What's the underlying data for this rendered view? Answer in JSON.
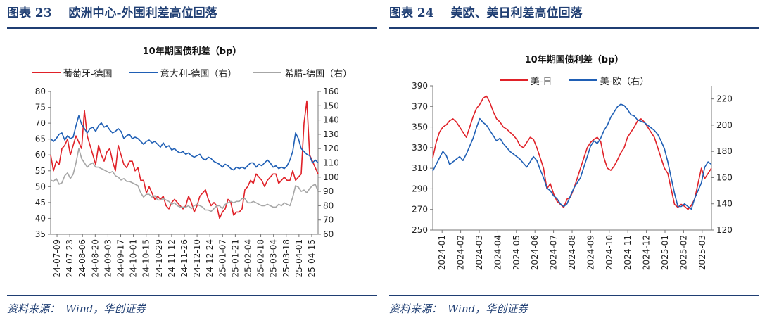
{
  "left": {
    "header": {
      "label": "图表",
      "number": "23",
      "title": "欧洲中心-外围利差高位回落"
    },
    "source": {
      "label": "资料来源：",
      "value": "Wind，华创证券"
    },
    "chart_data": {
      "type": "line",
      "title": "10年期国债利差（bp）",
      "legend_position": "top",
      "grid": false,
      "x_ticks": [
        "24-07-09",
        "24-07-23",
        "24-08-06",
        "24-08-20",
        "24-09-03",
        "24-09-17",
        "24-10-01",
        "24-10-15",
        "24-10-29",
        "24-11-12",
        "24-11-26",
        "24-12-10",
        "24-12-24",
        "25-01-07",
        "25-01-21",
        "25-02-04",
        "25-02-18",
        "25-03-04",
        "25-03-18",
        "25-04-01",
        "25-04-15"
      ],
      "y_left": {
        "range": [
          35,
          80
        ],
        "ticks": [
          35,
          40,
          45,
          50,
          55,
          60,
          65,
          70,
          75,
          80
        ]
      },
      "y_right": {
        "range": [
          60,
          160
        ],
        "ticks": [
          60,
          70,
          80,
          90,
          100,
          110,
          120,
          130,
          140,
          150,
          160
        ]
      },
      "series": [
        {
          "name": "葡萄牙-德国",
          "axis": "left",
          "color": "#e02128",
          "values": [
            60,
            55,
            58,
            57,
            62,
            63,
            65,
            60,
            63,
            66,
            64,
            62,
            74,
            66,
            63,
            60,
            57,
            63,
            60,
            58,
            61,
            62,
            58,
            55,
            63,
            60,
            57,
            56,
            58,
            58,
            55,
            56,
            52,
            52,
            48,
            50,
            48,
            46,
            47,
            46,
            47,
            44,
            43,
            45,
            46,
            45,
            44,
            43,
            44,
            47,
            45,
            42,
            44,
            47,
            48,
            49,
            46,
            44,
            45,
            44,
            40,
            42,
            43,
            46,
            45,
            41,
            42,
            42,
            43,
            49,
            50,
            52,
            51,
            54,
            53,
            52,
            50,
            52,
            53,
            54,
            54,
            51,
            52,
            53,
            52,
            52,
            55,
            52,
            53,
            54,
            70,
            77,
            60,
            58,
            56,
            54
          ]
        },
        {
          "name": "意大利-德国（右）",
          "axis": "right",
          "color": "#1f5fb5",
          "values": [
            127,
            125,
            127,
            130,
            131,
            126,
            129,
            127,
            128,
            136,
            143,
            137,
            134,
            131,
            134,
            135,
            132,
            136,
            138,
            135,
            136,
            133,
            131,
            132,
            134,
            132,
            127,
            129,
            130,
            127,
            128,
            127,
            125,
            123,
            125,
            126,
            124,
            125,
            123,
            121,
            124,
            121,
            122,
            119,
            120,
            118,
            117,
            118,
            116,
            117,
            115,
            114,
            115,
            116,
            113,
            112,
            114,
            113,
            111,
            110,
            109,
            107,
            109,
            108,
            106,
            105,
            107,
            106,
            107,
            106,
            108,
            110,
            110,
            107,
            109,
            108,
            110,
            112,
            110,
            107,
            108,
            106,
            107,
            106,
            108,
            112,
            118,
            131,
            127,
            120,
            118,
            116,
            115,
            110,
            112,
            110
          ]
        },
        {
          "name": "希腊-德国（右）",
          "axis": "right",
          "color": "#a6a6a6",
          "values": [
            98,
            97,
            99,
            95,
            96,
            101,
            103,
            99,
            102,
            110,
            120,
            113,
            110,
            107,
            109,
            110,
            107,
            107,
            106,
            105,
            104,
            103,
            104,
            101,
            100,
            98,
            99,
            97,
            97,
            96,
            95,
            94,
            89,
            86,
            88,
            88,
            86,
            87,
            84,
            84,
            85,
            84,
            83,
            81,
            82,
            80,
            79,
            79,
            79,
            80,
            78,
            80,
            81,
            80,
            79,
            77,
            77,
            76,
            78,
            80,
            80,
            78,
            81,
            82,
            83,
            82,
            83,
            83,
            85,
            85,
            82,
            82,
            83,
            82,
            81,
            80,
            80,
            81,
            80,
            79,
            79,
            81,
            80,
            82,
            81,
            80,
            86,
            94,
            93,
            90,
            91,
            89,
            92,
            94,
            95,
            90
          ]
        }
      ]
    }
  },
  "right": {
    "header": {
      "label": "图表",
      "number": "24",
      "title": "美欧、美日利差高位回落"
    },
    "source": {
      "label": "资料来源：",
      "value": "Wind，华创证券"
    },
    "chart_data": {
      "type": "line",
      "title": "10年期国债利差（bp）",
      "legend_position": "top",
      "grid": false,
      "x_ticks": [
        "2024-01",
        "2024-02",
        "2024-03",
        "2024-04",
        "2024-05",
        "2024-06",
        "2024-07",
        "2024-08",
        "2024-09",
        "2024-10",
        "2024-11",
        "2024-12",
        "2025-01",
        "2025-02",
        "2025-03"
      ],
      "y_left": {
        "range": [
          250,
          390
        ],
        "ticks": [
          250,
          270,
          290,
          310,
          330,
          350,
          370,
          390
        ]
      },
      "y_right": {
        "range": [
          120,
          230
        ],
        "ticks": [
          120,
          140,
          160,
          180,
          200,
          220
        ]
      },
      "series": [
        {
          "name": "美-日",
          "axis": "left",
          "color": "#e02128",
          "values": [
            320,
            335,
            345,
            350,
            352,
            356,
            358,
            355,
            350,
            345,
            340,
            350,
            360,
            368,
            372,
            378,
            380,
            374,
            365,
            358,
            355,
            350,
            348,
            345,
            342,
            338,
            332,
            330,
            335,
            340,
            338,
            330,
            320,
            310,
            290,
            295,
            285,
            278,
            275,
            272,
            280,
            282,
            290,
            300,
            310,
            320,
            330,
            335,
            338,
            340,
            336,
            320,
            310,
            308,
            312,
            318,
            325,
            330,
            340,
            345,
            350,
            356,
            358,
            355,
            350,
            345,
            340,
            330,
            320,
            310,
            305,
            290,
            275,
            272,
            275,
            273,
            270,
            274,
            280,
            295,
            310,
            300,
            305,
            310
          ]
        },
        {
          "name": "美-欧（右）",
          "axis": "right",
          "color": "#1f5fb5",
          "values": [
            165,
            170,
            175,
            180,
            177,
            170,
            172,
            174,
            176,
            173,
            178,
            184,
            190,
            198,
            205,
            202,
            200,
            196,
            192,
            188,
            190,
            186,
            183,
            180,
            178,
            176,
            174,
            171,
            168,
            172,
            176,
            173,
            166,
            160,
            152,
            150,
            146,
            144,
            140,
            138,
            140,
            146,
            152,
            156,
            160,
            168,
            176,
            184,
            188,
            186,
            190,
            196,
            200,
            206,
            210,
            214,
            216,
            215,
            212,
            208,
            207,
            204,
            203,
            202,
            200,
            198,
            196,
            193,
            188,
            182,
            172,
            160,
            148,
            138,
            138,
            140,
            138,
            136,
            144,
            150,
            156,
            168,
            172,
            170
          ]
        }
      ]
    }
  }
}
